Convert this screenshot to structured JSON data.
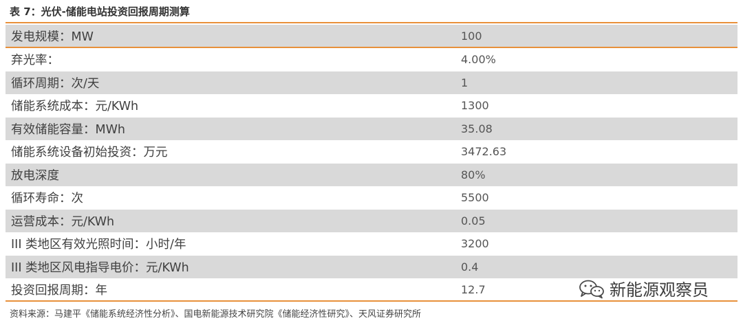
{
  "title": "表 7：光伏-储能电站投资回报周期测算",
  "rows": [
    {
      "label": "发电规模：MW",
      "value": "100"
    },
    {
      "label": "弃光率：",
      "value": "4.00%"
    },
    {
      "label": "循环周期：次/天",
      "value": "1"
    },
    {
      "label": "储能系统成本：元/KWh",
      "value": "1300"
    },
    {
      "label": "有效储能容量：MWh",
      "value": "35.08"
    },
    {
      "label": "储能系统设备初始投资：万元",
      "value": "3472.63"
    },
    {
      "label": "放电深度",
      "value": "80%"
    },
    {
      "label": "循环寿命：次",
      "value": "5500"
    },
    {
      "label": "运营成本：元/KWh",
      "value": "0.05"
    },
    {
      "label": "III 类地区有效光照时间：小时/年",
      "value": "3200"
    },
    {
      "label": "III 类地区风电指导电价：元/KWh",
      "value": "0.4"
    },
    {
      "label": "投资回报周期：年",
      "value": "12.7"
    }
  ],
  "source": "资料来源：马建平《储能系统经济性分析》、国电新能源技术研究院《储能经济性研究》、天风证券研究所",
  "watermark": {
    "text": "新能源观察员",
    "icon": "wechat-icon"
  },
  "colors": {
    "accent": "#e8903a",
    "shade": "#d9d9d9"
  }
}
